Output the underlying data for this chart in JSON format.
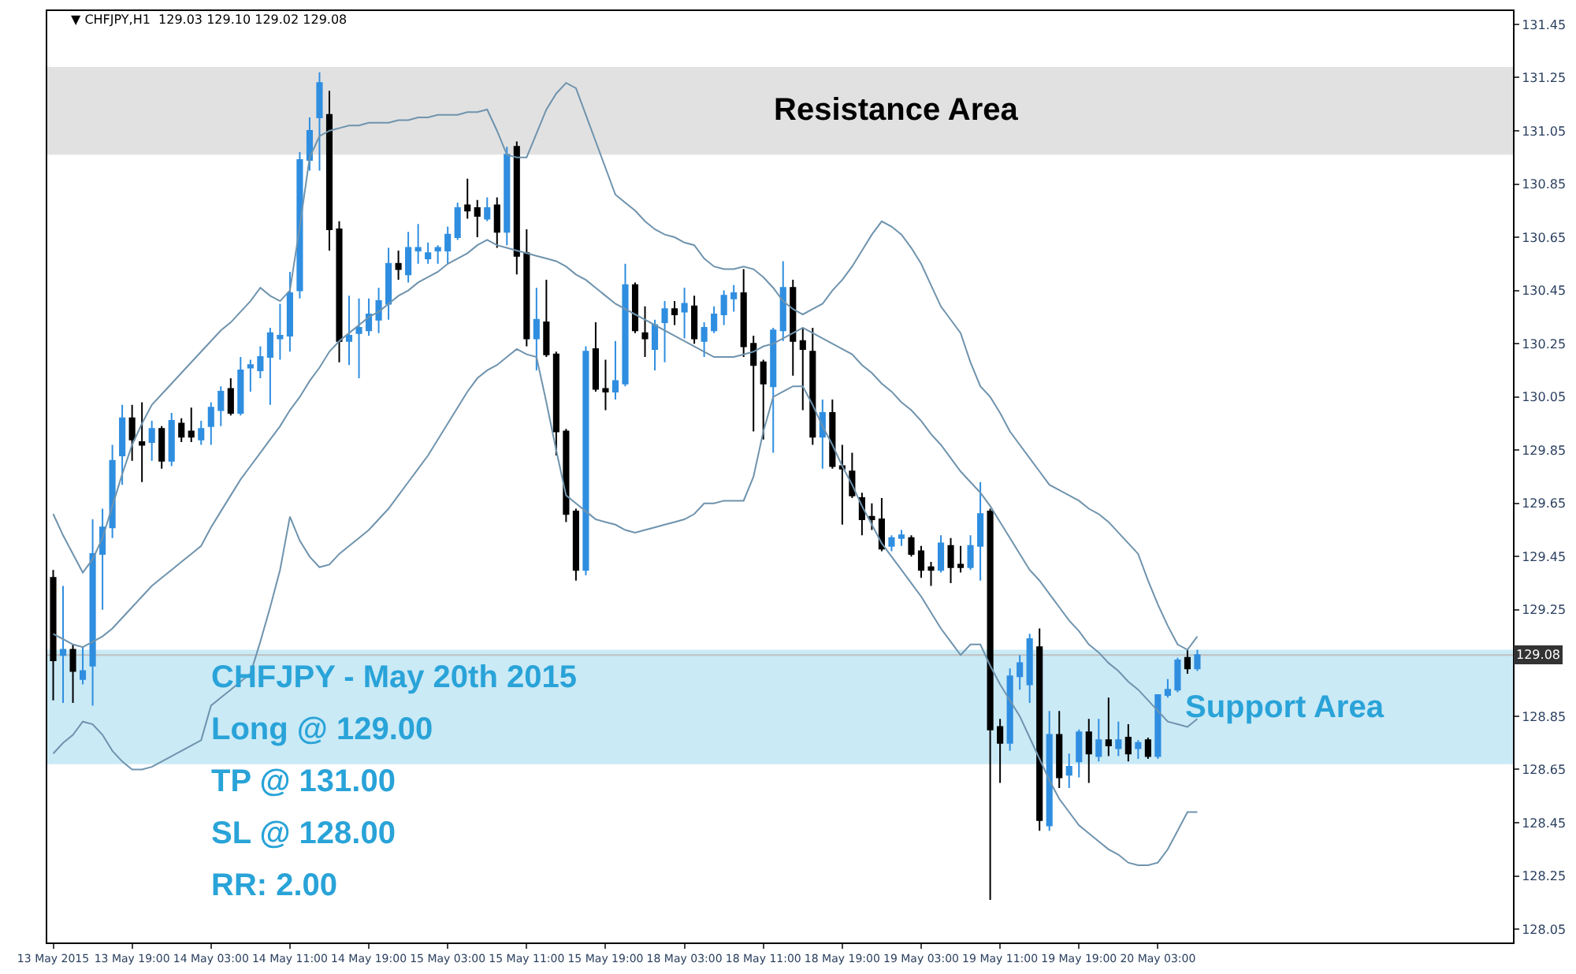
{
  "chart_data": {
    "type": "candlestick",
    "title": "▼ CHFJPY,H1  129.03 129.10 129.02 129.08",
    "categories": [
      "13 May 2015",
      null,
      null,
      null,
      null,
      null,
      null,
      null,
      "13 May 19:00",
      null,
      null,
      null,
      null,
      null,
      null,
      null,
      "14 May 03:00",
      null,
      null,
      null,
      null,
      null,
      null,
      null,
      "14 May 11:00",
      null,
      null,
      null,
      null,
      null,
      null,
      null,
      "14 May 19:00",
      null,
      null,
      null,
      null,
      null,
      null,
      null,
      "15 May 03:00",
      null,
      null,
      null,
      null,
      null,
      null,
      null,
      "15 May 11:00",
      null,
      null,
      null,
      null,
      null,
      null,
      null,
      "15 May 19:00",
      null,
      null,
      null,
      null,
      null,
      null,
      null,
      "18 May 03:00",
      null,
      null,
      null,
      null,
      null,
      null,
      null,
      "18 May 11:00",
      null,
      null,
      null,
      null,
      null,
      null,
      null,
      "18 May 19:00",
      null,
      null,
      null,
      null,
      null,
      null,
      null,
      "19 May 03:00",
      null,
      null,
      null,
      null,
      null,
      null,
      null,
      "19 May 11:00",
      null,
      null,
      null,
      null,
      null,
      null,
      null,
      "19 May 19:00",
      null,
      null,
      null,
      null,
      null,
      null,
      null,
      "20 May 03:00",
      null,
      null,
      null,
      null
    ],
    "ohlc": [
      [
        129.37,
        129.4,
        128.91,
        129.06
      ],
      [
        129.08,
        129.34,
        128.9,
        129.1
      ],
      [
        129.1,
        129.12,
        128.9,
        129.02
      ],
      [
        128.99,
        129.11,
        128.97,
        129.02
      ],
      [
        129.04,
        129.59,
        128.89,
        129.46
      ],
      [
        129.46,
        129.63,
        129.25,
        129.56
      ],
      [
        129.56,
        129.87,
        129.52,
        129.81
      ],
      [
        129.83,
        130.02,
        129.72,
        129.97
      ],
      [
        129.97,
        130.02,
        129.81,
        129.89
      ],
      [
        129.88,
        130.03,
        129.73,
        129.87
      ],
      [
        129.88,
        129.96,
        129.81,
        129.93
      ],
      [
        129.93,
        129.94,
        129.78,
        129.81
      ],
      [
        129.81,
        129.99,
        129.79,
        129.96
      ],
      [
        129.95,
        129.97,
        129.88,
        129.9
      ],
      [
        129.92,
        130.01,
        129.88,
        129.9
      ],
      [
        129.89,
        129.96,
        129.87,
        129.93
      ],
      [
        129.94,
        130.03,
        129.87,
        130.01
      ],
      [
        130.0,
        130.09,
        129.94,
        130.07
      ],
      [
        130.08,
        130.12,
        129.98,
        129.99
      ],
      [
        129.99,
        130.2,
        129.98,
        130.15
      ],
      [
        130.16,
        130.19,
        130.07,
        130.17
      ],
      [
        130.15,
        130.24,
        130.12,
        130.2
      ],
      [
        130.2,
        130.31,
        130.02,
        130.29
      ],
      [
        130.27,
        130.4,
        130.19,
        130.28
      ],
      [
        130.28,
        130.52,
        130.22,
        130.44
      ],
      [
        130.45,
        130.97,
        130.42,
        130.94
      ],
      [
        130.94,
        131.1,
        130.9,
        131.05
      ],
      [
        131.1,
        131.27,
        130.9,
        131.23
      ],
      [
        131.11,
        131.2,
        130.6,
        130.68
      ],
      [
        130.68,
        130.71,
        130.18,
        130.26
      ],
      [
        130.26,
        130.43,
        130.17,
        130.28
      ],
      [
        130.29,
        130.42,
        130.12,
        130.31
      ],
      [
        130.3,
        130.42,
        130.28,
        130.36
      ],
      [
        130.34,
        130.46,
        130.29,
        130.41
      ],
      [
        130.4,
        130.61,
        130.34,
        130.55
      ],
      [
        130.55,
        130.6,
        130.49,
        130.53
      ],
      [
        130.51,
        130.67,
        130.48,
        130.61
      ],
      [
        130.6,
        130.7,
        130.55,
        130.61
      ],
      [
        130.57,
        130.63,
        130.55,
        130.59
      ],
      [
        130.6,
        130.62,
        130.55,
        130.61
      ],
      [
        130.6,
        130.69,
        130.55,
        130.66
      ],
      [
        130.65,
        130.78,
        130.64,
        130.76
      ],
      [
        130.77,
        130.87,
        130.72,
        130.75
      ],
      [
        130.76,
        130.79,
        130.65,
        130.73
      ],
      [
        130.72,
        130.8,
        130.71,
        130.76
      ],
      [
        130.77,
        130.8,
        130.61,
        130.67
      ],
      [
        130.67,
        130.99,
        130.62,
        130.96
      ],
      [
        130.99,
        131.01,
        130.51,
        130.58
      ],
      [
        130.59,
        130.68,
        130.24,
        130.27
      ],
      [
        130.27,
        130.46,
        130.15,
        130.34
      ],
      [
        130.33,
        130.49,
        130.2,
        130.21
      ],
      [
        130.21,
        130.22,
        129.83,
        129.92
      ],
      [
        129.92,
        129.93,
        129.58,
        129.61
      ],
      [
        129.62,
        129.63,
        129.36,
        129.4
      ],
      [
        129.4,
        130.24,
        129.38,
        130.22
      ],
      [
        130.23,
        130.33,
        130.07,
        130.08
      ],
      [
        130.08,
        130.19,
        130.0,
        130.07
      ],
      [
        130.07,
        130.26,
        130.04,
        130.11
      ],
      [
        130.1,
        130.55,
        130.09,
        130.47
      ],
      [
        130.47,
        130.48,
        130.29,
        130.3
      ],
      [
        130.29,
        130.39,
        130.2,
        130.27
      ],
      [
        130.23,
        130.34,
        130.15,
        130.32
      ],
      [
        130.33,
        130.41,
        130.18,
        130.38
      ],
      [
        130.38,
        130.41,
        130.32,
        130.36
      ],
      [
        130.37,
        130.46,
        130.27,
        130.4
      ],
      [
        130.39,
        130.43,
        130.25,
        130.27
      ],
      [
        130.26,
        130.33,
        130.2,
        130.31
      ],
      [
        130.3,
        130.39,
        130.29,
        130.36
      ],
      [
        130.36,
        130.45,
        130.32,
        130.43
      ],
      [
        130.42,
        130.47,
        130.37,
        130.44
      ],
      [
        130.44,
        130.53,
        130.2,
        130.24
      ],
      [
        130.25,
        130.28,
        129.92,
        130.17
      ],
      [
        130.18,
        130.19,
        129.89,
        130.1
      ],
      [
        130.09,
        130.31,
        129.84,
        130.3
      ],
      [
        130.3,
        130.56,
        130.26,
        130.46
      ],
      [
        130.46,
        130.49,
        130.13,
        130.26
      ],
      [
        130.26,
        130.31,
        130.0,
        130.23
      ],
      [
        130.22,
        130.31,
        129.87,
        129.9
      ],
      [
        129.9,
        130.04,
        129.78,
        129.99
      ],
      [
        129.99,
        130.04,
        129.78,
        129.79
      ],
      [
        129.79,
        129.87,
        129.57,
        129.78
      ],
      [
        129.77,
        129.84,
        129.67,
        129.68
      ],
      [
        129.67,
        129.69,
        129.53,
        129.59
      ],
      [
        129.6,
        129.65,
        129.55,
        129.59
      ],
      [
        129.59,
        129.67,
        129.47,
        129.48
      ],
      [
        129.49,
        129.53,
        129.47,
        129.52
      ],
      [
        129.52,
        129.55,
        129.49,
        129.53
      ],
      [
        129.52,
        129.53,
        129.45,
        129.46
      ],
      [
        129.47,
        129.49,
        129.37,
        129.4
      ],
      [
        129.41,
        129.43,
        129.34,
        129.4
      ],
      [
        129.4,
        129.53,
        129.39,
        129.5
      ],
      [
        129.49,
        129.52,
        129.35,
        129.41
      ],
      [
        129.42,
        129.49,
        129.39,
        129.41
      ],
      [
        129.41,
        129.53,
        129.4,
        129.49
      ],
      [
        129.49,
        129.73,
        129.36,
        129.61
      ],
      [
        129.62,
        129.63,
        128.16,
        128.8
      ],
      [
        128.81,
        128.84,
        128.6,
        128.75
      ],
      [
        128.75,
        129.03,
        128.72,
        129.0
      ],
      [
        129.0,
        129.08,
        128.95,
        129.05
      ],
      [
        128.97,
        129.16,
        128.9,
        129.14
      ],
      [
        129.11,
        129.18,
        128.42,
        128.46
      ],
      [
        128.44,
        128.87,
        128.42,
        128.78
      ],
      [
        128.78,
        128.87,
        128.58,
        128.62
      ],
      [
        128.63,
        128.71,
        128.58,
        128.66
      ],
      [
        128.68,
        128.8,
        128.62,
        128.79
      ],
      [
        128.79,
        128.84,
        128.6,
        128.71
      ],
      [
        128.7,
        128.84,
        128.68,
        128.76
      ],
      [
        128.76,
        128.92,
        128.7,
        128.74
      ],
      [
        128.73,
        128.83,
        128.7,
        128.76
      ],
      [
        128.77,
        128.82,
        128.68,
        128.71
      ],
      [
        128.73,
        128.76,
        128.69,
        128.75
      ],
      [
        128.76,
        128.77,
        128.69,
        128.7
      ],
      [
        128.7,
        128.93,
        128.69,
        128.93
      ],
      [
        128.93,
        128.99,
        128.92,
        128.95
      ],
      [
        128.95,
        129.07,
        128.94,
        129.06
      ],
      [
        129.07,
        129.1,
        129.01,
        129.03
      ],
      [
        129.03,
        129.1,
        129.02,
        129.08
      ]
    ],
    "colors": [
      "#000000",
      "#2f8ee0",
      "#000000",
      "#2f8ee0",
      "#2f8ee0",
      "#2f8ee0",
      "#2f8ee0",
      "#2f8ee0",
      "#000000",
      "#000000",
      "#2f8ee0",
      "#000000",
      "#2f8ee0",
      "#000000",
      "#000000",
      "#2f8ee0",
      "#2f8ee0",
      "#2f8ee0",
      "#000000",
      "#2f8ee0",
      "#2f8ee0",
      "#2f8ee0",
      "#2f8ee0",
      "#2f8ee0",
      "#2f8ee0",
      "#2f8ee0",
      "#2f8ee0",
      "#2f8ee0",
      "#000000",
      "#000000",
      "#2f8ee0",
      "#2f8ee0",
      "#2f8ee0",
      "#2f8ee0",
      "#2f8ee0",
      "#000000",
      "#2f8ee0",
      "#2f8ee0",
      "#2f8ee0",
      "#2f8ee0",
      "#2f8ee0",
      "#2f8ee0",
      "#000000",
      "#000000",
      "#2f8ee0",
      "#000000",
      "#2f8ee0",
      "#000000",
      "#000000",
      "#2f8ee0",
      "#000000",
      "#000000",
      "#000000",
      "#000000",
      "#2f8ee0",
      "#000000",
      "#000000",
      "#2f8ee0",
      "#2f8ee0",
      "#000000",
      "#000000",
      "#2f8ee0",
      "#2f8ee0",
      "#000000",
      "#2f8ee0",
      "#000000",
      "#2f8ee0",
      "#2f8ee0",
      "#2f8ee0",
      "#2f8ee0",
      "#000000",
      "#000000",
      "#000000",
      "#2f8ee0",
      "#2f8ee0",
      "#000000",
      "#000000",
      "#000000",
      "#2f8ee0",
      "#000000",
      "#000000",
      "#000000",
      "#000000",
      "#000000",
      "#000000",
      "#2f8ee0",
      "#2f8ee0",
      "#000000",
      "#000000",
      "#000000",
      "#2f8ee0",
      "#000000",
      "#000000",
      "#2f8ee0",
      "#2f8ee0",
      "#000000",
      "#000000",
      "#2f8ee0",
      "#2f8ee0",
      "#2f8ee0",
      "#000000",
      "#2f8ee0",
      "#000000",
      "#2f8ee0",
      "#2f8ee0",
      "#000000",
      "#2f8ee0",
      "#000000",
      "#2f8ee0",
      "#000000",
      "#2f8ee0",
      "#000000",
      "#2f8ee0",
      "#2f8ee0",
      "#2f8ee0",
      "#000000",
      "#2f8ee0"
    ],
    "series": [
      {
        "type": "line",
        "color": "#6f93ad",
        "values": [
          129.61,
          129.53,
          129.46,
          129.39,
          129.44,
          129.52,
          129.64,
          129.76,
          129.87,
          129.95,
          130.02,
          130.06,
          130.1,
          130.14,
          130.18,
          130.22,
          130.26,
          130.3,
          130.33,
          130.37,
          130.41,
          130.46,
          130.43,
          130.41,
          130.45,
          130.69,
          130.95,
          131.03,
          131.05,
          131.06,
          131.07,
          131.07,
          131.08,
          131.08,
          131.08,
          131.09,
          131.09,
          131.1,
          131.1,
          131.11,
          131.11,
          131.11,
          131.12,
          131.12,
          131.13,
          131.05,
          130.96,
          130.95,
          130.95,
          131.04,
          131.13,
          131.19,
          131.23,
          131.21,
          131.11,
          131.01,
          130.91,
          130.81,
          130.78,
          130.75,
          130.71,
          130.68,
          130.66,
          130.65,
          130.63,
          130.62,
          130.57,
          130.54,
          130.53,
          130.53,
          130.54,
          130.53,
          130.5,
          130.46,
          130.41,
          130.38,
          130.36,
          130.38,
          130.4,
          130.45,
          130.49,
          130.54,
          130.6,
          130.66,
          130.71,
          130.69,
          130.66,
          130.61,
          130.55,
          130.47,
          130.39,
          130.34,
          130.29,
          130.18,
          130.09,
          130.05,
          129.99,
          129.92,
          129.87,
          129.82,
          129.77,
          129.72,
          129.7,
          129.68,
          129.66,
          129.63,
          129.61,
          129.58,
          129.54,
          129.5,
          129.46,
          129.36,
          129.27,
          129.19,
          129.12,
          129.1,
          129.15
        ]
      },
      {
        "type": "line",
        "color": "#6f93ad",
        "values": [
          129.16,
          129.14,
          129.12,
          129.11,
          129.13,
          129.15,
          129.18,
          129.22,
          129.26,
          129.3,
          129.34,
          129.37,
          129.4,
          129.43,
          129.46,
          129.49,
          129.56,
          129.62,
          129.68,
          129.74,
          129.79,
          129.84,
          129.89,
          129.94,
          130.0,
          130.05,
          130.11,
          130.16,
          130.22,
          130.26,
          130.29,
          130.32,
          130.35,
          130.37,
          130.4,
          130.43,
          130.45,
          130.48,
          130.5,
          130.52,
          130.55,
          130.57,
          130.59,
          130.62,
          130.64,
          130.62,
          130.61,
          130.6,
          130.59,
          130.58,
          130.57,
          130.56,
          130.54,
          130.51,
          130.49,
          130.46,
          130.43,
          130.4,
          130.38,
          130.36,
          130.34,
          130.32,
          130.3,
          130.28,
          130.26,
          130.24,
          130.22,
          130.2,
          130.2,
          130.2,
          130.21,
          130.22,
          130.24,
          130.25,
          130.27,
          130.29,
          130.31,
          130.29,
          130.27,
          130.25,
          130.23,
          130.21,
          130.17,
          130.14,
          130.1,
          130.07,
          130.03,
          130.0,
          129.96,
          129.91,
          129.87,
          129.82,
          129.77,
          129.73,
          129.69,
          129.64,
          129.58,
          129.52,
          129.46,
          129.4,
          129.36,
          129.31,
          129.26,
          129.21,
          129.17,
          129.12,
          129.09,
          129.05,
          129.02,
          128.98,
          128.95,
          128.91,
          128.87,
          128.83,
          128.82,
          128.81,
          128.84
        ]
      },
      {
        "type": "line",
        "color": "#6f93ad",
        "values": [
          128.71,
          128.75,
          128.78,
          128.83,
          128.82,
          128.78,
          128.72,
          128.68,
          128.65,
          128.65,
          128.66,
          128.68,
          128.7,
          128.72,
          128.74,
          128.76,
          128.89,
          128.92,
          128.95,
          128.98,
          129.01,
          129.13,
          129.26,
          129.4,
          129.6,
          129.51,
          129.45,
          129.41,
          129.42,
          129.46,
          129.49,
          129.52,
          129.55,
          129.59,
          129.63,
          129.68,
          129.73,
          129.78,
          129.83,
          129.89,
          129.95,
          130.01,
          130.07,
          130.12,
          130.15,
          130.17,
          130.2,
          130.23,
          130.21,
          130.2,
          130.03,
          129.85,
          129.68,
          129.65,
          129.62,
          129.59,
          129.58,
          129.57,
          129.55,
          129.54,
          129.55,
          129.56,
          129.57,
          129.58,
          129.59,
          129.61,
          129.65,
          129.65,
          129.66,
          129.66,
          129.66,
          129.75,
          129.92,
          130.05,
          130.07,
          130.09,
          130.09,
          130.02,
          129.94,
          129.87,
          129.79,
          129.72,
          129.64,
          129.57,
          129.5,
          129.45,
          129.4,
          129.35,
          129.3,
          129.24,
          129.18,
          129.13,
          129.08,
          129.12,
          129.12,
          129.04,
          128.97,
          128.91,
          128.85,
          128.77,
          128.69,
          128.61,
          128.54,
          128.49,
          128.44,
          128.41,
          128.38,
          128.35,
          128.33,
          128.3,
          128.29,
          128.29,
          128.3,
          128.35,
          128.42,
          128.49,
          128.49
        ]
      }
    ],
    "ylim": [
      128.0,
      131.5
    ],
    "yticks": [
      128.05,
      128.25,
      128.45,
      128.65,
      128.85,
      {
        "value": 129.05,
        "label": null
      },
      129.25,
      129.45,
      129.65,
      129.85,
      130.05,
      130.25,
      130.45,
      130.65,
      130.85,
      131.05,
      131.25,
      131.45
    ],
    "bands": [
      {
        "axis": "y",
        "from": 130.96,
        "to": 131.29,
        "label": "Resistance Area",
        "color": "#c8c8c8"
      },
      {
        "axis": "y",
        "from": 128.67,
        "to": 129.1,
        "label": "Support Area",
        "color": "#9fd8ee"
      }
    ],
    "ref_lines": [
      {
        "axis": "y",
        "value": 129.08,
        "label": "129.08",
        "color": "#c0c0c0"
      }
    ],
    "annotations": [
      "CHFJPY - May 20th 2015",
      "Long @ 129.00",
      "TP @ 131.00",
      "SL @ 128.00",
      "RR: 2.00"
    ]
  }
}
